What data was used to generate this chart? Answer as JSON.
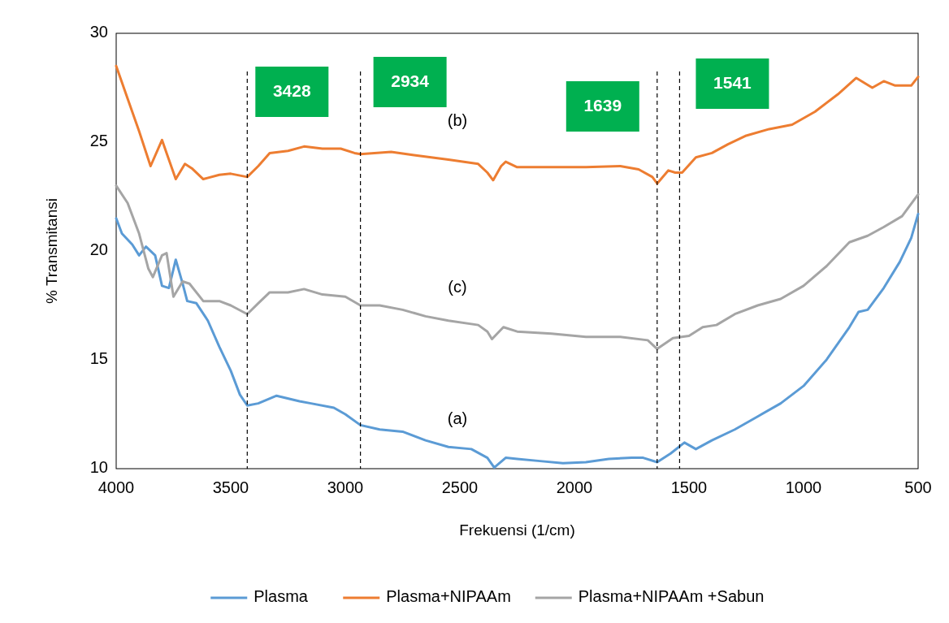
{
  "chart_data": {
    "type": "line",
    "xlabel": "Frekuensi (1/cm)",
    "ylabel": "% Transmitansi",
    "xlim": [
      4000,
      500
    ],
    "xticks": [
      4000,
      3500,
      3000,
      2500,
      2000,
      1500,
      1000,
      500
    ],
    "ylim": [
      10,
      30
    ],
    "yticks": [
      10,
      15,
      20,
      25,
      30
    ],
    "grid": false,
    "legend": "bottom",
    "marker": "none",
    "line_style": "solid",
    "series": [
      {
        "name": "Plasma",
        "color": "#5b9bd5",
        "x": [
          4000,
          3975,
          3930,
          3900,
          3870,
          3830,
          3800,
          3770,
          3740,
          3710,
          3690,
          3650,
          3600,
          3550,
          3500,
          3460,
          3428,
          3380,
          3300,
          3200,
          3150,
          3050,
          3000,
          2934,
          2850,
          2750,
          2650,
          2550,
          2450,
          2380,
          2350,
          2300,
          2250,
          2150,
          2050,
          1950,
          1850,
          1750,
          1700,
          1639,
          1580,
          1520,
          1470,
          1400,
          1300,
          1200,
          1100,
          1000,
          900,
          800,
          760,
          720,
          650,
          580,
          530,
          500
        ],
        "values": [
          21.5,
          20.8,
          20.3,
          19.8,
          20.2,
          19.8,
          18.4,
          18.3,
          19.6,
          18.5,
          17.7,
          17.6,
          16.8,
          15.6,
          14.5,
          13.4,
          12.9,
          13.0,
          13.35,
          13.1,
          13.0,
          12.8,
          12.5,
          12.0,
          11.8,
          11.7,
          11.3,
          11.0,
          10.9,
          10.5,
          10.05,
          10.5,
          10.45,
          10.35,
          10.25,
          10.3,
          10.45,
          10.5,
          10.5,
          10.3,
          10.7,
          11.2,
          10.9,
          11.3,
          11.8,
          12.4,
          13.0,
          13.8,
          15.0,
          16.5,
          17.2,
          17.3,
          18.3,
          19.5,
          20.6,
          21.7
        ]
      },
      {
        "name": "Plasma+NIPAAm",
        "color": "#ed7d31",
        "x": [
          4000,
          3950,
          3900,
          3850,
          3800,
          3780,
          3740,
          3700,
          3670,
          3620,
          3550,
          3500,
          3428,
          3380,
          3330,
          3250,
          3180,
          3100,
          3020,
          2960,
          2934,
          2800,
          2700,
          2550,
          2420,
          2380,
          2355,
          2320,
          2300,
          2250,
          2100,
          1950,
          1800,
          1720,
          1660,
          1639,
          1590,
          1560,
          1530,
          1470,
          1400,
          1330,
          1250,
          1150,
          1050,
          950,
          850,
          770,
          700,
          650,
          600,
          530,
          500
        ],
        "values": [
          28.5,
          27.0,
          25.5,
          23.9,
          25.1,
          24.5,
          23.3,
          24.0,
          23.8,
          23.3,
          23.5,
          23.55,
          23.4,
          23.9,
          24.5,
          24.6,
          24.8,
          24.7,
          24.7,
          24.5,
          24.45,
          24.55,
          24.4,
          24.2,
          24.0,
          23.6,
          23.25,
          23.9,
          24.1,
          23.85,
          23.85,
          23.85,
          23.9,
          23.75,
          23.4,
          23.1,
          23.7,
          23.6,
          23.6,
          24.3,
          24.5,
          24.9,
          25.3,
          25.6,
          25.8,
          26.4,
          27.2,
          27.95,
          27.5,
          27.8,
          27.6,
          27.6,
          28.0
        ]
      },
      {
        "name": "Plasma+NIPAAm +Sabun",
        "color": "#a5a5a5",
        "x": [
          4000,
          3950,
          3900,
          3860,
          3840,
          3800,
          3780,
          3750,
          3710,
          3680,
          3620,
          3550,
          3500,
          3428,
          3380,
          3330,
          3250,
          3180,
          3100,
          3000,
          2934,
          2850,
          2750,
          2650,
          2550,
          2420,
          2380,
          2360,
          2310,
          2250,
          2100,
          1950,
          1800,
          1680,
          1639,
          1570,
          1500,
          1440,
          1380,
          1300,
          1200,
          1100,
          1000,
          900,
          800,
          720,
          650,
          570,
          500
        ],
        "values": [
          23.0,
          22.2,
          20.8,
          19.2,
          18.8,
          19.8,
          19.9,
          17.9,
          18.6,
          18.5,
          17.7,
          17.7,
          17.5,
          17.1,
          17.6,
          18.1,
          18.1,
          18.25,
          18.0,
          17.9,
          17.5,
          17.5,
          17.3,
          17.0,
          16.8,
          16.6,
          16.3,
          15.95,
          16.5,
          16.3,
          16.2,
          16.05,
          16.05,
          15.9,
          15.5,
          16.0,
          16.1,
          16.5,
          16.6,
          17.1,
          17.5,
          17.8,
          18.4,
          19.3,
          20.4,
          20.7,
          21.1,
          21.6,
          22.6
        ]
      }
    ],
    "ref_lines": [
      {
        "axis": "x",
        "value": 3428,
        "label": "3428",
        "color": "#000000",
        "line_style": "dashed"
      },
      {
        "axis": "x",
        "value": 2934,
        "label": "2934",
        "color": "#000000",
        "line_style": "dashed"
      },
      {
        "axis": "x",
        "value": 1639,
        "label": "1639",
        "color": "#000000",
        "line_style": "dashed"
      },
      {
        "axis": "x",
        "value": 1541,
        "label": "1541",
        "color": "#000000",
        "line_style": "dashed"
      }
    ],
    "annotations": [
      "(b)",
      "(c)",
      "(a)"
    ]
  }
}
